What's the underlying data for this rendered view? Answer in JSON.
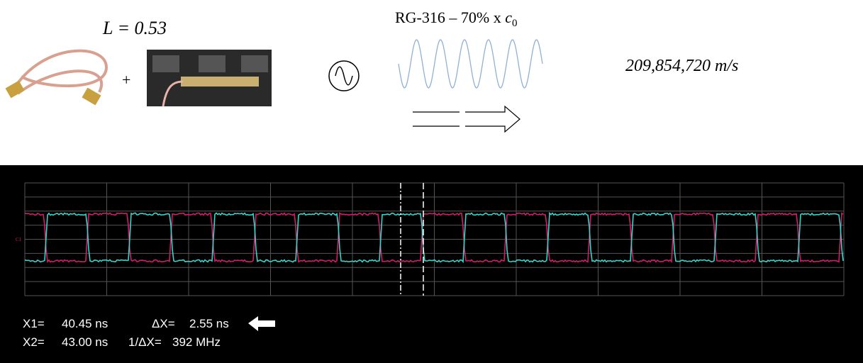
{
  "top": {
    "length_label": "L = 0.53",
    "plus": "+",
    "cable_label": {
      "text": "RG-316 – 70% x",
      "variable": "c",
      "subscript": "0"
    },
    "speed": "209,854,720 m/s"
  },
  "scope": {
    "channel_marker": "C1",
    "readout": {
      "x1_label": "X1=",
      "x1_value": "40.45 ns",
      "dx_label": "ΔX=",
      "dx_value": "2.55 ns",
      "x2_label": "X2=",
      "x2_value": "43.00 ns",
      "inv_dx_label": "1/ΔX=",
      "inv_dx_value": "392 MHz"
    }
  }
}
